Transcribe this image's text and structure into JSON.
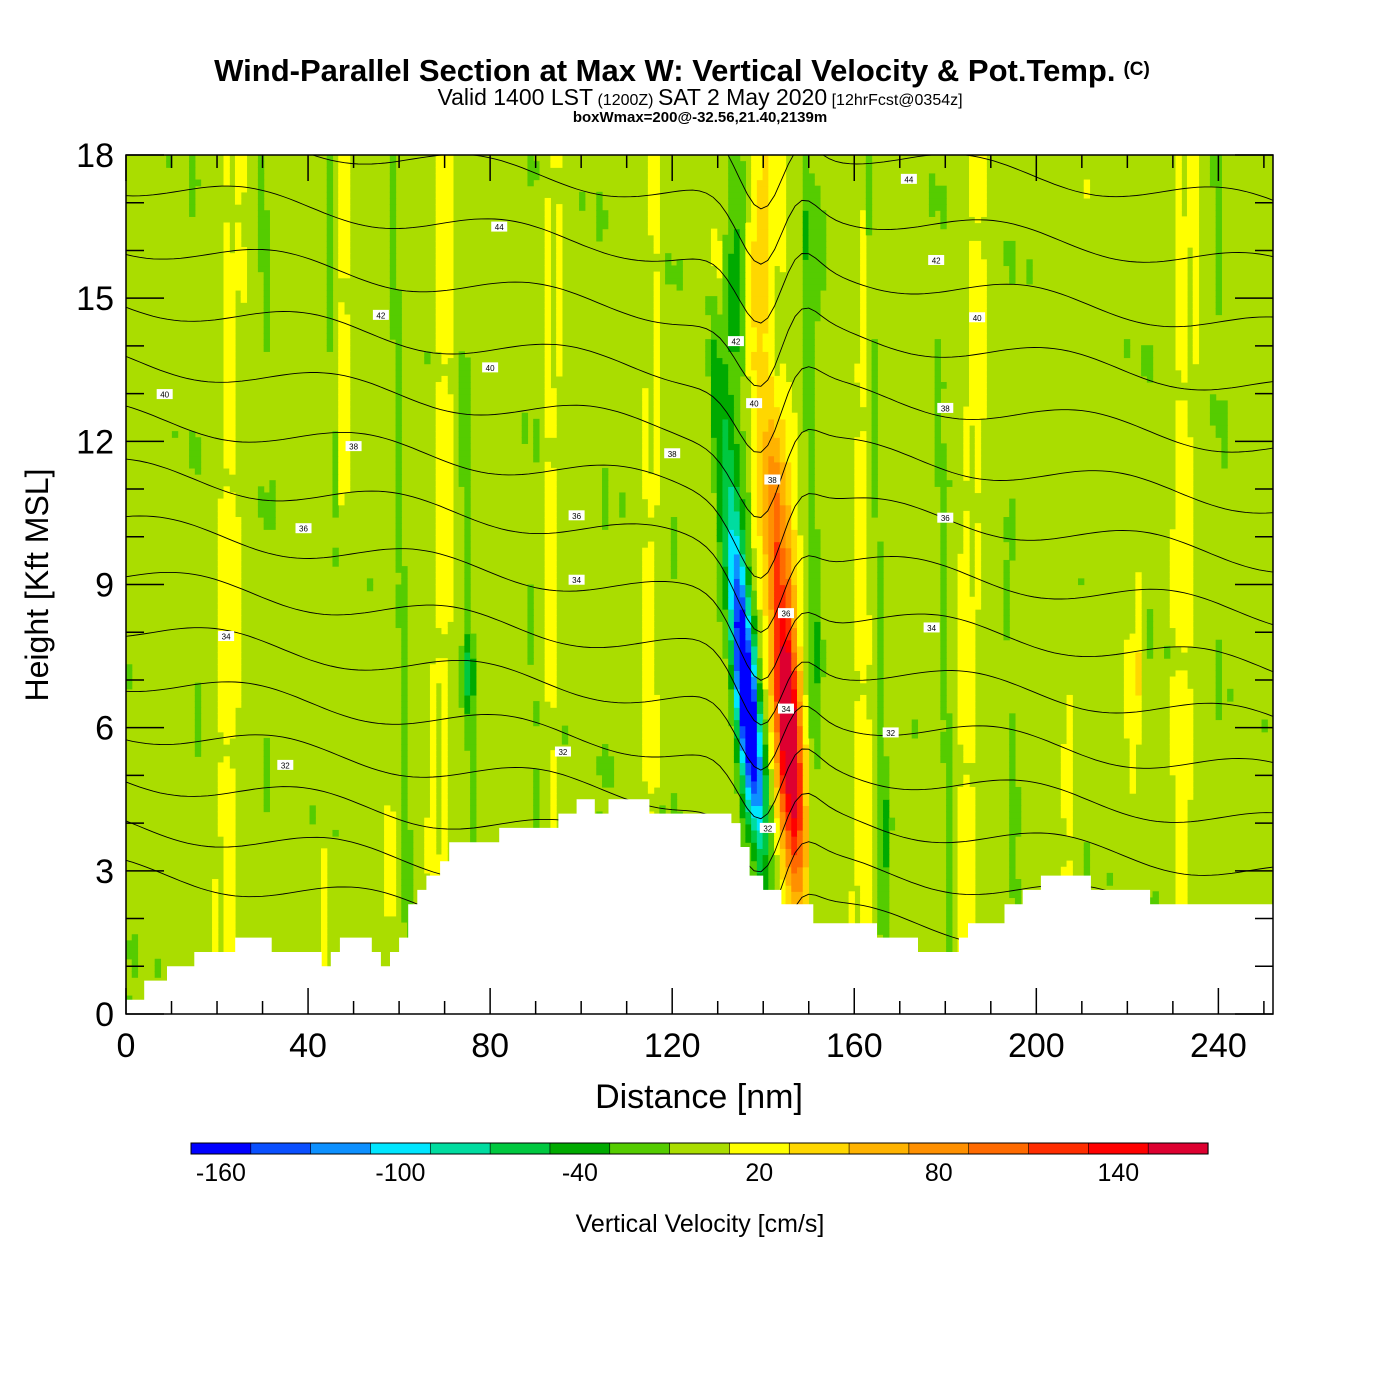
{
  "chart_data": {
    "type": "heatmap",
    "title": "Wind-Parallel Section at Max W: Vertical Velocity & Pot.Temp.",
    "title_mark": "(C)",
    "subtitle_parts": [
      "Valid 1400 LST",
      "(1200Z)",
      "SAT 2 May 2020",
      "[12hrFcst@0354z]"
    ],
    "subtitle2": "boxWmax=200@-32.56,21.40,2139m",
    "xlabel": "Distance [nm]",
    "ylabel": "Height [Kft MSL]",
    "xlim": [
      0,
      252
    ],
    "ylim": [
      0,
      18
    ],
    "x_ticks": [
      "0",
      "40",
      "80",
      "120",
      "160",
      "200",
      "240"
    ],
    "x_tick_values": [
      0,
      40,
      80,
      120,
      160,
      200,
      240
    ],
    "y_ticks": [
      "0",
      "3",
      "6",
      "9",
      "12",
      "15",
      "18"
    ],
    "y_tick_values": [
      0,
      3,
      6,
      9,
      12,
      15,
      18
    ],
    "colorbar": {
      "label": "Vertical Velocity [cm/s]",
      "min": -170,
      "max": 170,
      "step": 20,
      "colors": [
        "#0000ff",
        "#0a4fff",
        "#0d90ff",
        "#00e6ff",
        "#00dca0",
        "#00c840",
        "#00aa00",
        "#55cc00",
        "#aadd00",
        "#ffff00",
        "#ffd700",
        "#ffb300",
        "#ff9000",
        "#ff6a00",
        "#ff2d00",
        "#ff0000",
        "#dd0030"
      ],
      "tick_labels": [
        "-160",
        "-100",
        "-40",
        "20",
        "80",
        "140"
      ],
      "tick_values": [
        -160,
        -100,
        -40,
        20,
        80,
        140
      ]
    },
    "terrain_kft": [
      [
        0,
        0.3
      ],
      [
        4,
        0.3
      ],
      [
        4,
        0.7
      ],
      [
        9,
        0.7
      ],
      [
        9,
        1.0
      ],
      [
        15,
        1.0
      ],
      [
        15,
        1.3
      ],
      [
        24,
        1.3
      ],
      [
        24,
        1.6
      ],
      [
        32,
        1.6
      ],
      [
        32,
        1.3
      ],
      [
        43,
        1.3
      ],
      [
        43,
        1.0
      ],
      [
        45,
        1.0
      ],
      [
        45,
        1.3
      ],
      [
        47,
        1.3
      ],
      [
        47,
        1.6
      ],
      [
        54,
        1.6
      ],
      [
        54,
        1.3
      ],
      [
        56,
        1.3
      ],
      [
        56,
        1.0
      ],
      [
        58,
        1.0
      ],
      [
        58,
        1.3
      ],
      [
        60,
        1.3
      ],
      [
        60,
        1.6
      ],
      [
        62,
        1.6
      ],
      [
        62,
        2.3
      ],
      [
        64,
        2.3
      ],
      [
        64,
        2.6
      ],
      [
        66,
        2.6
      ],
      [
        66,
        2.9
      ],
      [
        69,
        2.9
      ],
      [
        69,
        3.2
      ],
      [
        71,
        3.2
      ],
      [
        71,
        3.6
      ],
      [
        82,
        3.6
      ],
      [
        82,
        3.9
      ],
      [
        95,
        3.9
      ],
      [
        95,
        4.2
      ],
      [
        99,
        4.2
      ],
      [
        99,
        4.5
      ],
      [
        103,
        4.5
      ],
      [
        103,
        4.2
      ],
      [
        106,
        4.2
      ],
      [
        106,
        4.5
      ],
      [
        115,
        4.5
      ],
      [
        115,
        4.2
      ],
      [
        133,
        4.2
      ],
      [
        133,
        4.0
      ],
      [
        135,
        4.0
      ],
      [
        135,
        3.5
      ],
      [
        137,
        3.5
      ],
      [
        137,
        2.9
      ],
      [
        140,
        2.9
      ],
      [
        140,
        2.6
      ],
      [
        144,
        2.6
      ],
      [
        144,
        2.3
      ],
      [
        151,
        2.3
      ],
      [
        151,
        1.9
      ],
      [
        165,
        1.9
      ],
      [
        165,
        1.6
      ],
      [
        174,
        1.6
      ],
      [
        174,
        1.3
      ],
      [
        183,
        1.3
      ],
      [
        183,
        1.6
      ],
      [
        185,
        1.6
      ],
      [
        185,
        1.9
      ],
      [
        193,
        1.9
      ],
      [
        193,
        2.3
      ],
      [
        197,
        2.3
      ],
      [
        197,
        2.6
      ],
      [
        201,
        2.6
      ],
      [
        201,
        2.9
      ],
      [
        212,
        2.9
      ],
      [
        212,
        2.6
      ],
      [
        225,
        2.6
      ],
      [
        225,
        2.3
      ],
      [
        252,
        2.3
      ]
    ],
    "theta_levels": [
      30,
      31,
      32,
      33,
      34,
      35,
      36,
      37,
      38,
      39,
      40,
      41,
      42,
      43,
      44,
      45,
      46,
      47,
      48,
      49,
      50
    ],
    "theta_labels": [
      {
        "x": 8.5,
        "y": 12.99,
        "text": "40"
      },
      {
        "x": 22,
        "y": 7.92,
        "text": "34"
      },
      {
        "x": 35,
        "y": 5.22,
        "text": "32"
      },
      {
        "x": 39,
        "y": 10.18,
        "text": "36"
      },
      {
        "x": 50,
        "y": 11.9,
        "text": "38"
      },
      {
        "x": 56,
        "y": 14.65,
        "text": "42"
      },
      {
        "x": 80,
        "y": 13.55,
        "text": "40"
      },
      {
        "x": 82,
        "y": 16.5,
        "text": "44"
      },
      {
        "x": 96,
        "y": 5.5,
        "text": "32"
      },
      {
        "x": 99,
        "y": 10.45,
        "text": "36"
      },
      {
        "x": 99,
        "y": 9.1,
        "text": "34"
      },
      {
        "x": 120,
        "y": 11.75,
        "text": "38"
      },
      {
        "x": 134,
        "y": 14.1,
        "text": "42"
      },
      {
        "x": 138,
        "y": 12.8,
        "text": "40"
      },
      {
        "x": 142,
        "y": 11.2,
        "text": "38"
      },
      {
        "x": 145,
        "y": 8.4,
        "text": "36"
      },
      {
        "x": 145,
        "y": 6.4,
        "text": "34"
      },
      {
        "x": 141,
        "y": 3.9,
        "text": "32"
      },
      {
        "x": 168,
        "y": 5.9,
        "text": "32"
      },
      {
        "x": 177,
        "y": 8.1,
        "text": "34"
      },
      {
        "x": 180,
        "y": 10.4,
        "text": "36"
      },
      {
        "x": 180,
        "y": 12.7,
        "text": "38"
      },
      {
        "x": 187,
        "y": 14.6,
        "text": "40"
      },
      {
        "x": 178,
        "y": 15.8,
        "text": "42"
      },
      {
        "x": 172,
        "y": 17.5,
        "text": "44"
      }
    ]
  }
}
